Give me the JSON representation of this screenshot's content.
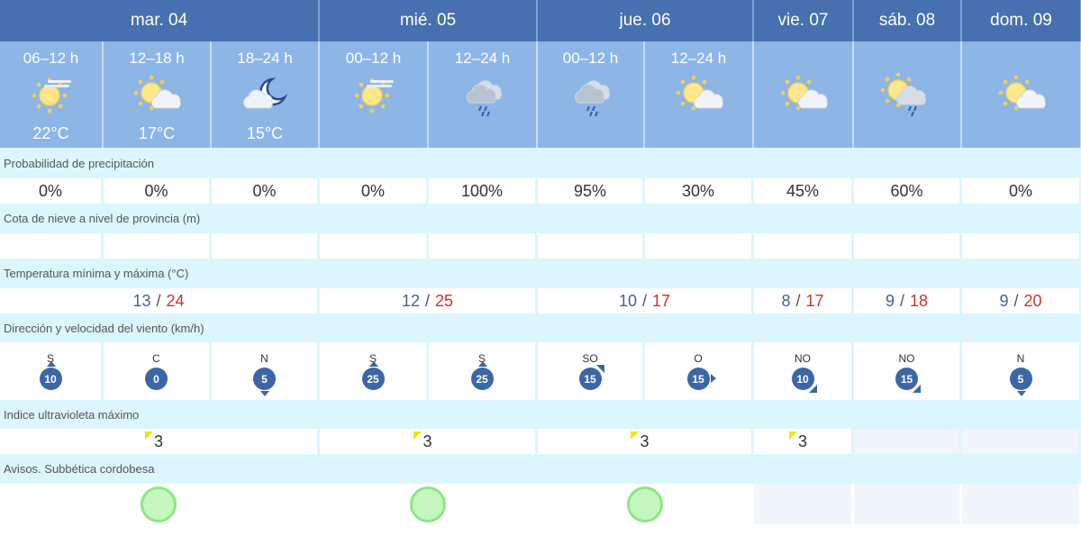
{
  "days": [
    {
      "label": "mar. 04",
      "span": 3
    },
    {
      "label": "mié. 05",
      "span": 2
    },
    {
      "label": "jue. 06",
      "span": 2
    },
    {
      "label": "vie. 07",
      "span": 1
    },
    {
      "label": "sáb. 08",
      "span": 1
    },
    {
      "label": "dom. 09",
      "span": 1
    }
  ],
  "periods": [
    {
      "time": "06–12 h",
      "icon": "sun-haze-icon",
      "temp": "22°C"
    },
    {
      "time": "12–18 h",
      "icon": "sun-cloud-icon",
      "temp": "17°C"
    },
    {
      "time": "18–24 h",
      "icon": "moon-cloud-icon",
      "temp": "15°C"
    },
    {
      "time": "00–12 h",
      "icon": "sun-haze-icon",
      "temp": ""
    },
    {
      "time": "12–24 h",
      "icon": "rain-cloud-icon",
      "temp": ""
    },
    {
      "time": "00–12 h",
      "icon": "rain-cloud-icon",
      "temp": ""
    },
    {
      "time": "12–24 h",
      "icon": "sun-cloud-icon",
      "temp": ""
    },
    {
      "time": "",
      "icon": "sun-cloud-icon",
      "temp": ""
    },
    {
      "time": "",
      "icon": "sun-rain-cloud-icon",
      "temp": ""
    },
    {
      "time": "",
      "icon": "sun-cloud-icon",
      "temp": ""
    }
  ],
  "labels": {
    "precip": "Probabilidad de precipitación",
    "snow": "Cota de nieve a nivel de provincia (m)",
    "temp": "Temperatura mínima y máxima (°C)",
    "wind": "Dirección y velocidad del viento (km/h)",
    "uv": "Indice ultravioleta máximo",
    "warn": "Avisos. Subbética cordobesa"
  },
  "precip": [
    "0%",
    "0%",
    "0%",
    "0%",
    "100%",
    "95%",
    "30%",
    "45%",
    "60%",
    "0%"
  ],
  "temps": [
    {
      "min": "13",
      "max": "24"
    },
    {
      "min": "12",
      "max": "25"
    },
    {
      "min": "10",
      "max": "17"
    },
    {
      "min": "8",
      "max": "17"
    },
    {
      "min": "9",
      "max": "18"
    },
    {
      "min": "9",
      "max": "20"
    }
  ],
  "temp_sep": "/",
  "wind": [
    {
      "dir": "S",
      "speed": "10"
    },
    {
      "dir": "C",
      "speed": "0"
    },
    {
      "dir": "N",
      "speed": "5"
    },
    {
      "dir": "S",
      "speed": "25"
    },
    {
      "dir": "S",
      "speed": "25"
    },
    {
      "dir": "SO",
      "speed": "15"
    },
    {
      "dir": "O",
      "speed": "15"
    },
    {
      "dir": "NO",
      "speed": "10"
    },
    {
      "dir": "NO",
      "speed": "15"
    },
    {
      "dir": "N",
      "speed": "5"
    }
  ],
  "uv": [
    "3",
    "3",
    "3",
    "3",
    "",
    ""
  ],
  "warnings": [
    "green",
    "green",
    "green",
    "none",
    "none",
    "none"
  ],
  "colors": {
    "header": "#4670b0",
    "period": "#8db6e6",
    "min": "#44609a",
    "max": "#d0312d",
    "uv": "#f2e600",
    "warning_green": "#c6f7c0"
  }
}
